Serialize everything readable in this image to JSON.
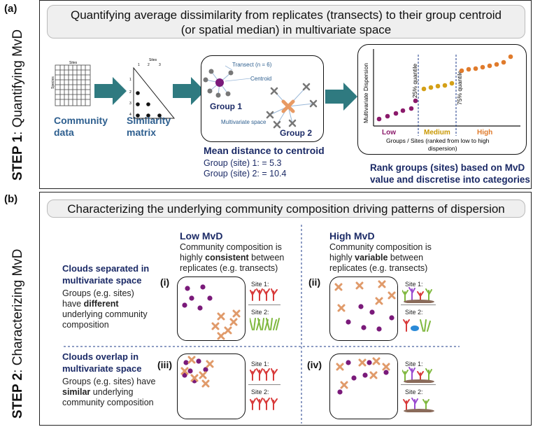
{
  "step1": {
    "tag": "(a)",
    "side_bold": "STEP 1",
    "side_rest": ": Quantifying MvD",
    "title_line1": "Quantifying average dissimilarity from replicates (transects) to their group centroid",
    "title_line2": "(or spatial median) in multivariate space",
    "community": {
      "line1": "Community",
      "line2": "data",
      "grid_top": "Sites",
      "grid_side": "Species"
    },
    "similarity": {
      "line1": "Similarity",
      "line2": "matrix",
      "top_label": "Sites",
      "cols": [
        "1",
        "2",
        "3"
      ],
      "rows": [
        "1",
        "2",
        "3",
        "4"
      ]
    },
    "mv_space": {
      "transect": "Transect (n = 6)",
      "centroid": "Centroid",
      "group1": "Group 1",
      "group2": "Group 2",
      "multivariate": "Multivariate space"
    },
    "mean_distance": {
      "title": "Mean distance to centroid",
      "g1": "Group (site) 1: = 5.3",
      "g2": "Group (site) 2: = 10.4"
    },
    "rank_chart": {
      "ylabel": "Multivariate Dispersion",
      "q25": "25% quantile",
      "q75": "75% quantile",
      "cats": [
        "Low",
        "Medium",
        "High"
      ],
      "xlabel_line1": "Groups / Sites (ranked from low to high",
      "xlabel_line2": "dispersion)",
      "colors": {
        "low": "#8b1a6b",
        "medium": "#d4a017",
        "high": "#e07b2c"
      }
    },
    "rank_caption_line1": "Rank groups (sites) based on MvD",
    "rank_caption_line2": "value and discretise into categories"
  },
  "step2": {
    "tag": "(b)",
    "side_bold": "STEP 2",
    "side_rest": ": Characterizing MvD",
    "title": "Characterizing the underlying community composition driving patterns of dispersion",
    "low": {
      "head": "Low MvD",
      "l1": "Community composition is",
      "l2_pre": "highly ",
      "l2_bold": "consistent",
      "l2_post": " between",
      "l3": "replicates (e.g. transects)"
    },
    "high": {
      "head": "High MvD",
      "l1": "Community composition is",
      "l2_pre": "highly ",
      "l2_bold": "variable",
      "l2_post": " between",
      "l3": "replicates (e.g. transects)"
    },
    "sep": {
      "head1": "Clouds separated in",
      "head2": "multivariate space",
      "l1": "Groups (e.g. sites)",
      "l2_pre": "have ",
      "l2_bold": "different",
      "l3": "underlying community",
      "l4": "composition"
    },
    "overlap": {
      "head1": "Clouds overlap in",
      "head2": "multivariate space",
      "l1": "Groups (e.g. sites) have",
      "l2_bold": "similar",
      "l2_post": " underlying",
      "l3": "community composition"
    },
    "quad_labels": [
      "(i)",
      "(ii)",
      "(iii)",
      "(iv)"
    ],
    "site1": "Site 1:",
    "site2": "Site 2:"
  }
}
